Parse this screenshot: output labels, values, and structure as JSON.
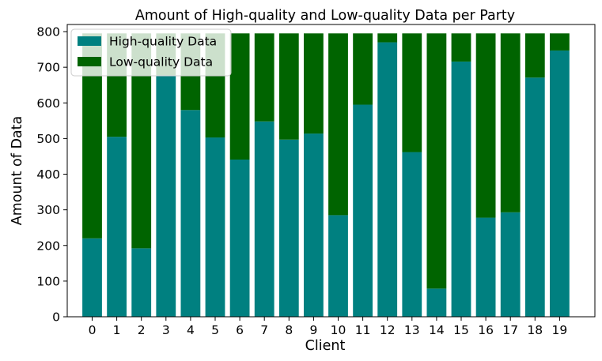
{
  "chart_data": {
    "type": "bar",
    "stacked": true,
    "title": "Amount of High-quality and Low-quality Data per Party",
    "xlabel": "Client",
    "ylabel": "Amount of Data",
    "ylim": [
      0,
      820
    ],
    "yticks": [
      0,
      100,
      200,
      300,
      400,
      500,
      600,
      700,
      800
    ],
    "categories": [
      "0",
      "1",
      "2",
      "3",
      "4",
      "5",
      "6",
      "7",
      "8",
      "9",
      "10",
      "11",
      "12",
      "13",
      "14",
      "15",
      "16",
      "17",
      "18",
      "19"
    ],
    "series": [
      {
        "name": "High-quality Data",
        "color": "#008080",
        "values": [
          220,
          505,
          192,
          678,
          580,
          503,
          441,
          548,
          497,
          514,
          285,
          595,
          770,
          462,
          79,
          716,
          278,
          293,
          671,
          747
        ]
      },
      {
        "name": "Low-quality Data",
        "color": "#006400",
        "values": [
          575,
          290,
          603,
          117,
          215,
          292,
          354,
          247,
          298,
          281,
          510,
          200,
          25,
          333,
          716,
          79,
          517,
          502,
          124,
          48
        ]
      }
    ],
    "legend_position": "upper-left",
    "grid": false
  }
}
